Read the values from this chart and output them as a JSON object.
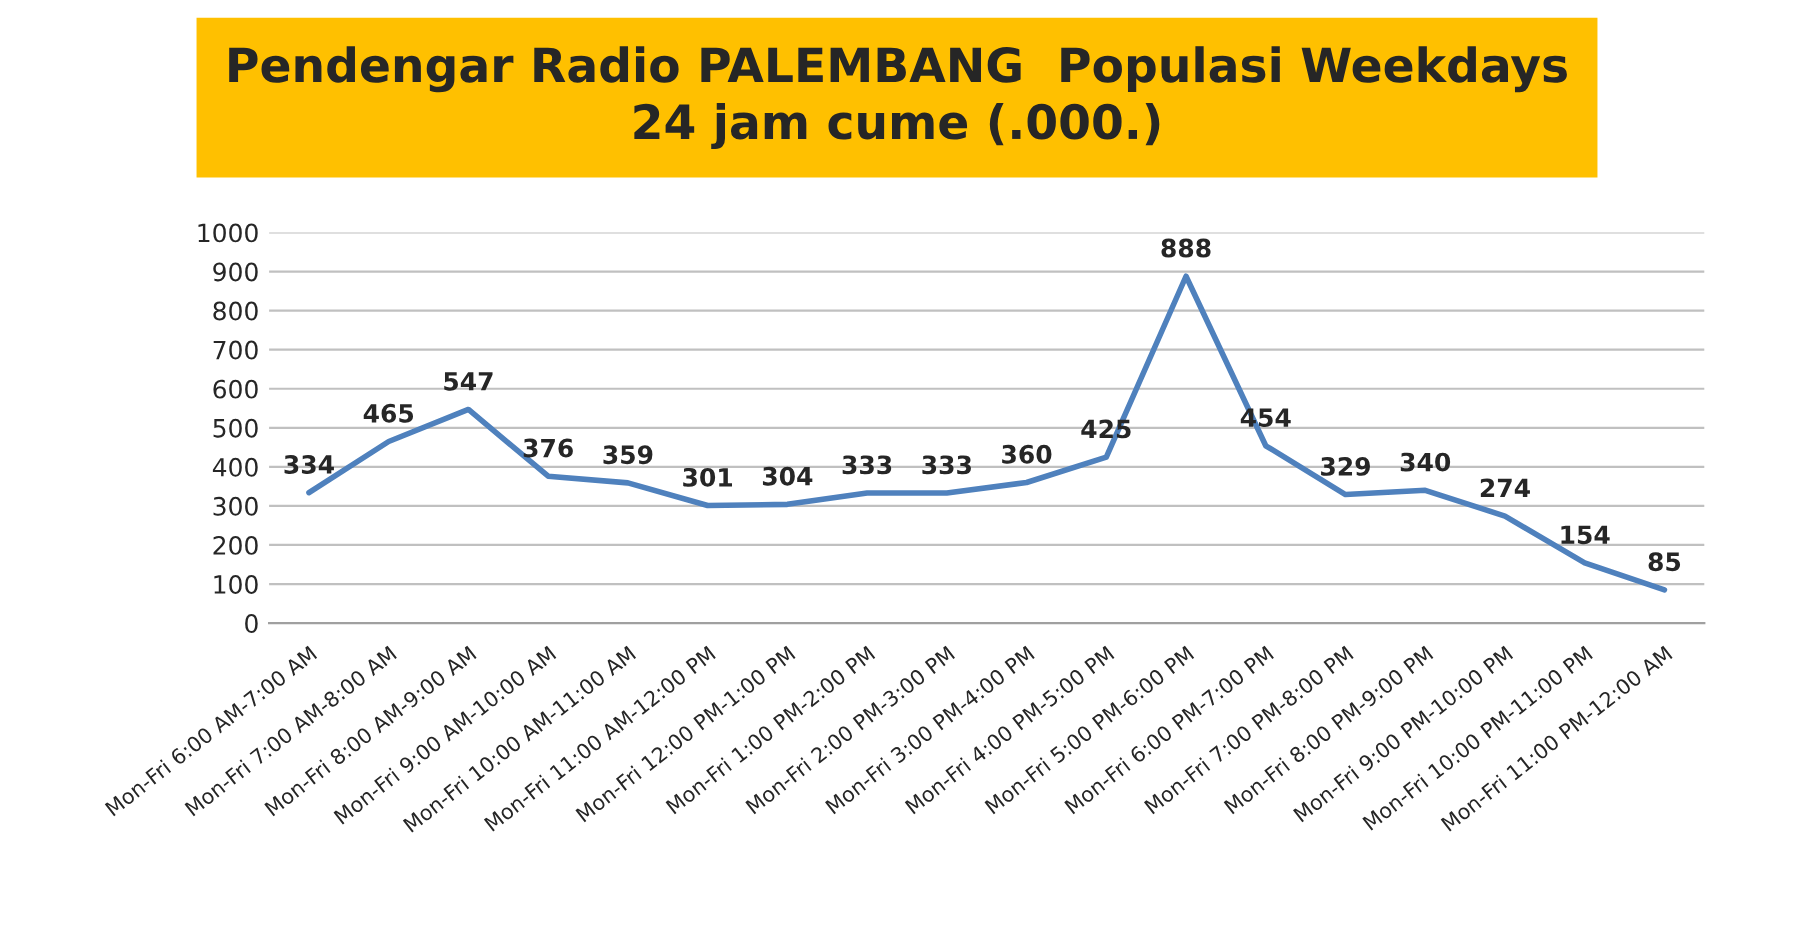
{
  "chart_data": {
    "type": "line",
    "title": "Pendengar Radio PALEMBANG  Populasi Weekdays\n24 jam cume (.000.)",
    "categories": [
      "Mon-Fri 6:00 AM-7:00 AM",
      "Mon-Fri 7:00 AM-8:00 AM",
      "Mon-Fri 8:00 AM-9:00 AM",
      "Mon-Fri 9:00 AM-10:00 AM",
      "Mon-Fri 10:00 AM-11:00 AM",
      "Mon-Fri 11:00 AM-12:00 PM",
      "Mon-Fri 12:00 PM-1:00 PM",
      "Mon-Fri 1:00 PM-2:00 PM",
      "Mon-Fri 2:00 PM-3:00 PM",
      "Mon-Fri 3:00 PM-4:00 PM",
      "Mon-Fri 4:00 PM-5:00 PM",
      "Mon-Fri 5:00 PM-6:00 PM",
      "Mon-Fri 6:00 PM-7:00 PM",
      "Mon-Fri 7:00 PM-8:00 PM",
      "Mon-Fri 8:00 PM-9:00 PM",
      "Mon-Fri 9:00 PM-10:00 PM",
      "Mon-Fri 10:00 PM-11:00 PM",
      "Mon-Fri 11:00 PM-12:00 AM"
    ],
    "series": [
      {
        "color": "#4f81bd",
        "values": [
          334,
          465,
          547,
          376,
          359,
          301,
          304,
          333,
          333,
          360,
          425,
          888,
          454,
          329,
          340,
          274,
          154,
          85
        ]
      }
    ],
    "ylim": [
      0,
      1000
    ],
    "yticks": [
      0,
      100,
      200,
      300,
      400,
      500,
      600,
      700,
      800,
      900,
      1000
    ],
    "grid": "y",
    "data_labels": true,
    "line_style": "solid"
  }
}
